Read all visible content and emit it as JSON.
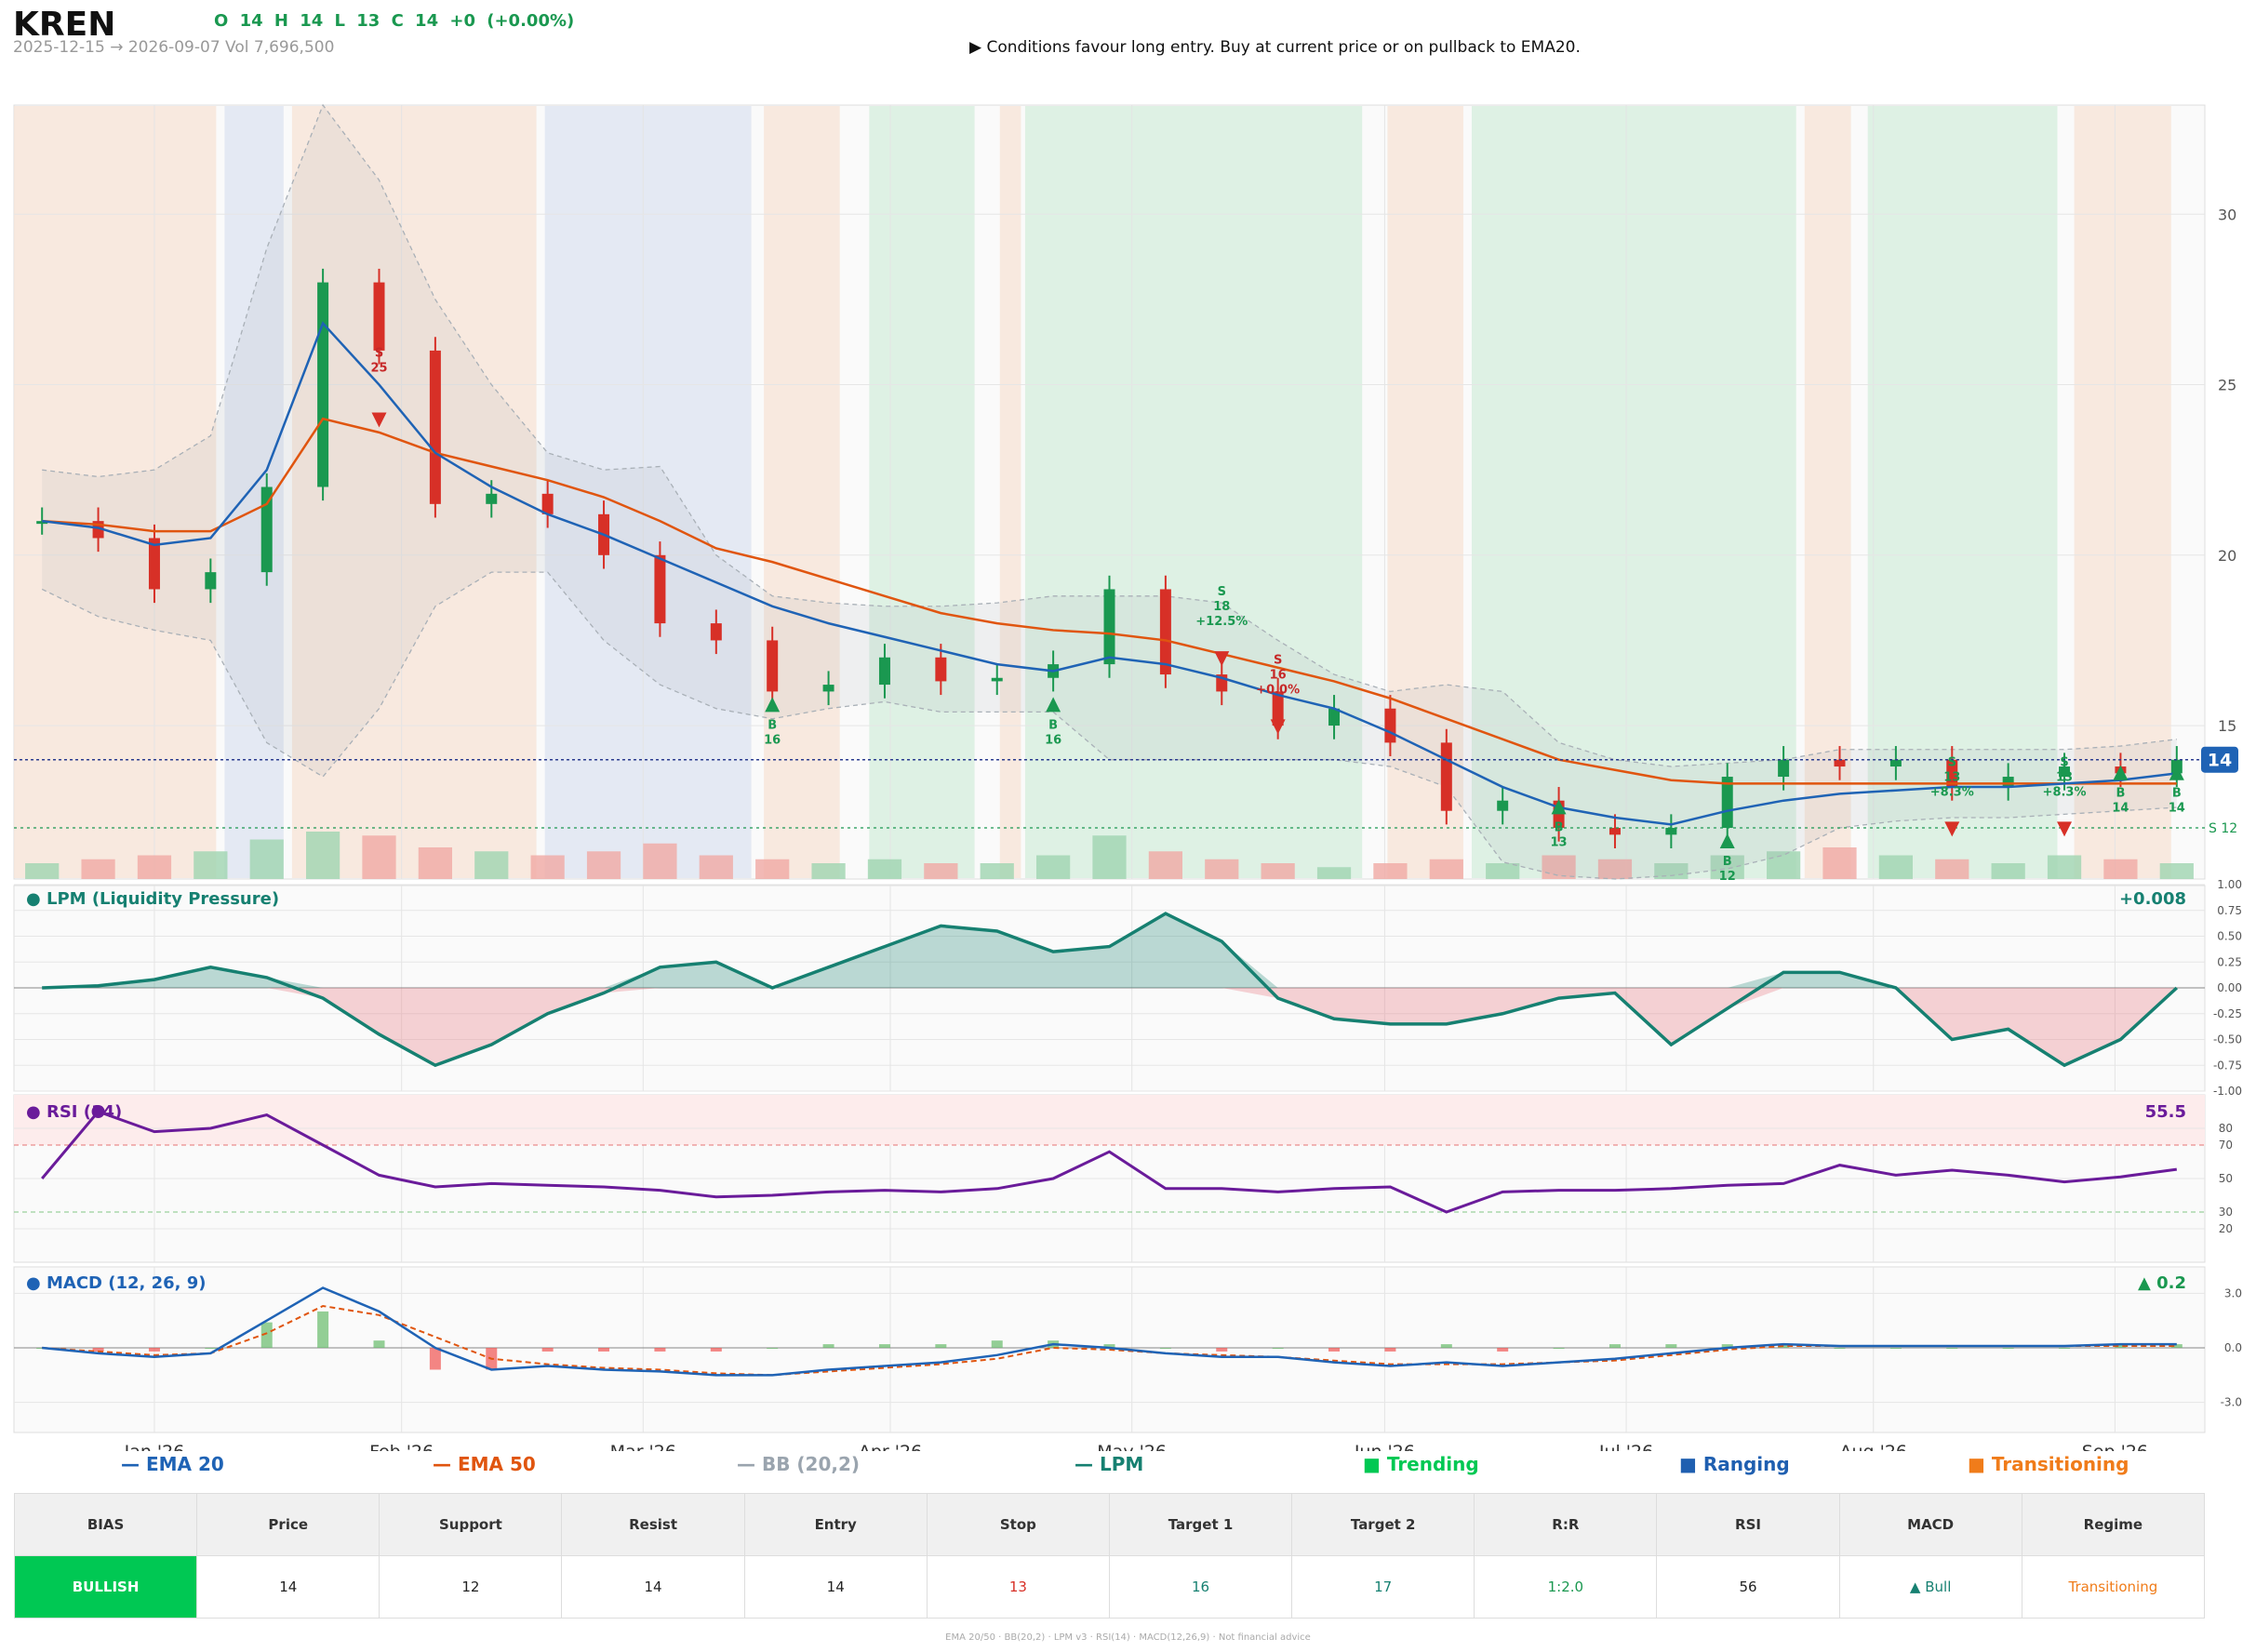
{
  "header": {
    "ticker": "KREN",
    "ohlc": "O 14   H 14   L 13   C 14   +0  (+0.00%)",
    "subline": "2025-12-15 → 2026-09-07   Vol 7,696,500",
    "advice": "▶  Conditions favour long entry. Buy at current price or on pullback to EMA20."
  },
  "colors": {
    "up": "#1a9850",
    "down": "#d73027",
    "ema20": "#1f63b5",
    "ema50": "#e0550f",
    "lpm": "#168071",
    "rsi": "#6a1b9a",
    "trending": "#00c853",
    "ranging": "#1f5fb0",
    "transitioning": "#f07c1a"
  },
  "chart_data": [
    {
      "type": "line",
      "title": "",
      "x": [
        "2025-12-15",
        "2025-12-22",
        "2025-12-29",
        "2026-01-05",
        "2026-01-12",
        "2026-01-19",
        "2026-01-26",
        "2026-02-02",
        "2026-02-09",
        "2026-02-16",
        "2026-02-23",
        "2026-03-02",
        "2026-03-09",
        "2026-03-16",
        "2026-03-23",
        "2026-03-30",
        "2026-04-06",
        "2026-04-13",
        "2026-04-20",
        "2026-04-27",
        "2026-05-04",
        "2026-05-11",
        "2026-05-18",
        "2026-05-25",
        "2026-06-01",
        "2026-06-08",
        "2026-06-15",
        "2026-06-22",
        "2026-06-29",
        "2026-07-06",
        "2026-07-13",
        "2026-07-20",
        "2026-07-27",
        "2026-08-03",
        "2026-08-10",
        "2026-08-17",
        "2026-08-24",
        "2026-08-31",
        "2026-09-07"
      ],
      "x_tick_labels": [
        "Jan '26",
        "Feb '26",
        "Mar '26",
        "Apr '26",
        "May '26",
        "Jun '26",
        "Jul '26",
        "Aug '26",
        "Sep '26"
      ],
      "y_ticks": [
        15,
        20,
        25,
        30
      ],
      "ylim": [
        10.5,
        33.2
      ],
      "series": [
        {
          "name": "EMA 20",
          "values": [
            21.0,
            20.8,
            20.3,
            20.5,
            22.5,
            26.8,
            25.0,
            23.0,
            22.0,
            21.2,
            20.6,
            19.9,
            19.2,
            18.5,
            18.0,
            17.6,
            17.2,
            16.8,
            16.6,
            17.0,
            16.8,
            16.4,
            15.9,
            15.5,
            14.8,
            14.0,
            13.2,
            12.6,
            12.3,
            12.1,
            12.5,
            12.8,
            13.0,
            13.1,
            13.2,
            13.2,
            13.3,
            13.4,
            13.6
          ]
        },
        {
          "name": "EMA 50",
          "values": [
            21.0,
            20.9,
            20.7,
            20.7,
            21.5,
            24.0,
            23.6,
            23.0,
            22.6,
            22.2,
            21.7,
            21.0,
            20.2,
            19.8,
            19.3,
            18.8,
            18.3,
            18.0,
            17.8,
            17.7,
            17.5,
            17.1,
            16.7,
            16.3,
            15.8,
            15.2,
            14.6,
            14.0,
            13.7,
            13.4,
            13.3,
            13.3,
            13.3,
            13.3,
            13.3,
            13.3,
            13.3,
            13.3,
            13.3
          ]
        },
        {
          "name": "BB (20,2)",
          "values": [
            22.5,
            22.3,
            22.5,
            23.5,
            29.0,
            33.2,
            31.0,
            27.5,
            25.0,
            23.0,
            22.5,
            22.6,
            20.0,
            18.8,
            18.6,
            18.5,
            18.5,
            18.6,
            18.8,
            18.8,
            18.8,
            18.6,
            17.5,
            16.5,
            16.0,
            16.2,
            16.0,
            14.5,
            14.0,
            13.8,
            13.9,
            14.0,
            14.3,
            14.3,
            14.3,
            14.3,
            14.3,
            14.4,
            14.6
          ]
        },
        {
          "name": "BB lower",
          "values": [
            19.0,
            18.2,
            17.8,
            17.5,
            14.5,
            13.5,
            15.5,
            18.5,
            19.5,
            19.5,
            17.5,
            16.2,
            15.5,
            15.2,
            15.5,
            15.7,
            15.4,
            15.4,
            15.4,
            14.0,
            14.0,
            14.0,
            14.0,
            14.0,
            13.8,
            13.2,
            11.0,
            10.6,
            10.5,
            10.6,
            10.8,
            11.2,
            12.0,
            12.2,
            12.3,
            12.3,
            12.4,
            12.5,
            12.6
          ]
        }
      ],
      "closes": [
        21,
        20.5,
        19,
        19.5,
        22,
        28,
        26,
        21.5,
        21.8,
        21.2,
        20,
        18,
        17.5,
        16,
        16.2,
        17,
        16.3,
        16.4,
        16.8,
        19,
        16.5,
        16,
        15,
        15.5,
        14.5,
        12.5,
        12.8,
        12,
        11.8,
        12,
        13.5,
        14,
        13.8,
        14,
        13.2,
        13.5,
        13.8,
        13.6,
        14
      ],
      "current_price_tag": "14",
      "stop_label": "S 12",
      "trade_markers": [
        {
          "side": "S",
          "price": "25",
          "text": "S\n25"
        },
        {
          "side": "B",
          "price": "16",
          "text": "B\n16"
        },
        {
          "side": "B",
          "price": "16",
          "text": "B\n16"
        },
        {
          "side": "S",
          "price": "18",
          "text": "S\n18\n+12.5%"
        },
        {
          "side": "S",
          "price": "16",
          "text": "S\n16\n+0.0%"
        },
        {
          "side": "B",
          "price": "13",
          "text": "B\n13"
        },
        {
          "side": "B",
          "price": "12",
          "text": "B\n12"
        },
        {
          "side": "S",
          "price": "13",
          "text": "S\n13\n+8.3%"
        },
        {
          "side": "S",
          "price": "13",
          "text": "S\n13\n+8.3%"
        },
        {
          "side": "B",
          "price": "14",
          "text": "B\n14"
        },
        {
          "side": "B",
          "price": "14",
          "text": "B\n14"
        }
      ],
      "volume_levels": [
        0.2,
        0.25,
        0.3,
        0.35,
        0.5,
        0.6,
        0.55,
        0.4,
        0.35,
        0.3,
        0.35,
        0.45,
        0.3,
        0.25,
        0.2,
        0.25,
        0.2,
        0.2,
        0.3,
        0.55,
        0.35,
        0.25,
        0.2,
        0.15,
        0.2,
        0.25,
        0.2,
        0.3,
        0.25,
        0.2,
        0.3,
        0.35,
        0.4,
        0.3,
        0.25,
        0.2,
        0.3,
        0.25,
        0.2
      ]
    },
    {
      "type": "area",
      "title": "● LPM (Liquidity Pressure)",
      "value_label": "+0.008",
      "y_ticks": [
        "1.00",
        "0.75",
        "0.50",
        "0.25",
        "0.00",
        "-0.25",
        "-0.50",
        "-0.75",
        "-1.00"
      ],
      "ylim": [
        -1.0,
        1.0
      ],
      "values": [
        0.0,
        0.02,
        0.08,
        0.2,
        0.1,
        -0.1,
        -0.45,
        -0.75,
        -0.55,
        -0.25,
        -0.05,
        0.2,
        0.25,
        0.0,
        0.2,
        0.4,
        0.6,
        0.55,
        0.35,
        0.4,
        0.72,
        0.45,
        -0.1,
        -0.3,
        -0.35,
        -0.35,
        -0.25,
        -0.1,
        -0.05,
        -0.55,
        -0.2,
        0.15,
        0.15,
        0.0,
        -0.5,
        -0.4,
        -0.75,
        -0.5,
        0.0
      ]
    },
    {
      "type": "line",
      "title": "● RSI (14)",
      "value_label": "55.5",
      "y_ticks": [
        80,
        70,
        50,
        30,
        20
      ],
      "ylim": [
        0,
        100
      ],
      "values": [
        50,
        90,
        78,
        80,
        88,
        70,
        52,
        45,
        47,
        46,
        45,
        43,
        39,
        40,
        42,
        43,
        42,
        44,
        50,
        66,
        44,
        44,
        42,
        44,
        45,
        30,
        42,
        43,
        43,
        44,
        46,
        47,
        58,
        52,
        55,
        52,
        48,
        51,
        55.5
      ]
    },
    {
      "type": "line",
      "title": "● MACD (12, 26, 9)",
      "value_label": "▲ 0.2",
      "y_ticks": [
        "3.0",
        "0.0",
        "-3.0"
      ],
      "ylim": [
        -4.5,
        4.5
      ],
      "series": [
        {
          "name": "MACD",
          "values": [
            0.0,
            -0.3,
            -0.5,
            -0.3,
            1.5,
            3.3,
            2.0,
            0.0,
            -1.2,
            -1.0,
            -1.2,
            -1.3,
            -1.5,
            -1.5,
            -1.2,
            -1.0,
            -0.8,
            -0.4,
            0.2,
            0.0,
            -0.3,
            -0.5,
            -0.5,
            -0.8,
            -1.0,
            -0.8,
            -1.0,
            -0.8,
            -0.6,
            -0.3,
            0.0,
            0.2,
            0.1,
            0.1,
            0.1,
            0.1,
            0.1,
            0.2,
            0.2
          ]
        },
        {
          "name": "Signal",
          "values": [
            0.0,
            -0.2,
            -0.4,
            -0.3,
            0.8,
            2.3,
            1.8,
            0.6,
            -0.6,
            -0.9,
            -1.1,
            -1.2,
            -1.4,
            -1.5,
            -1.3,
            -1.1,
            -0.9,
            -0.6,
            0.0,
            -0.1,
            -0.3,
            -0.4,
            -0.5,
            -0.7,
            -0.9,
            -0.9,
            -0.9,
            -0.8,
            -0.7,
            -0.4,
            -0.1,
            0.1,
            0.1,
            0.1,
            0.1,
            0.1,
            0.1,
            0.1,
            0.1
          ]
        }
      ]
    }
  ],
  "regimes": [
    {
      "start": 0,
      "end": 4.8,
      "kind": "transitioning"
    },
    {
      "start": 5.0,
      "end": 6.4,
      "kind": "ranging"
    },
    {
      "start": 6.6,
      "end": 12.4,
      "kind": "transitioning"
    },
    {
      "start": 12.6,
      "end": 17.5,
      "kind": "ranging"
    },
    {
      "start": 17.8,
      "end": 19.6,
      "kind": "transitioning"
    },
    {
      "start": 20.3,
      "end": 22.8,
      "kind": "trending"
    },
    {
      "start": 23.4,
      "end": 23.9,
      "kind": "transitioning"
    },
    {
      "start": 24.0,
      "end": 32.0,
      "kind": "trending"
    },
    {
      "start": 32.6,
      "end": 34.4,
      "kind": "transitioning"
    },
    {
      "start": 34.6,
      "end": 42.3,
      "kind": "trending"
    },
    {
      "start": 42.5,
      "end": 43.6,
      "kind": "transitioning"
    },
    {
      "start": 44.0,
      "end": 48.5,
      "kind": "trending"
    },
    {
      "start": 48.9,
      "end": 51.2,
      "kind": "transitioning"
    }
  ],
  "legend": {
    "ema20": "— EMA 20",
    "ema50": "— EMA 50",
    "bb": "— BB (20,2)",
    "lpm": "— LPM",
    "trending": "■  Trending",
    "ranging": "■  Ranging",
    "transitioning": "■  Transitioning"
  },
  "table": {
    "headers": [
      "BIAS",
      "Price",
      "Support",
      "Resist",
      "Entry",
      "Stop",
      "Target 1",
      "Target 2",
      "R:R",
      "RSI",
      "MACD",
      "Regime"
    ],
    "values": [
      "BULLISH",
      "14",
      "12",
      "14",
      "14",
      "13",
      "16",
      "17",
      "1:2.0",
      "56",
      "▲ Bull",
      "Transitioning"
    ],
    "value_colors": [
      "#ffffff",
      "#222222",
      "#222222",
      "#222222",
      "#222222",
      "#d73027",
      "#168071",
      "#168071",
      "#1a9850",
      "#222222",
      "#168071",
      "#f07c1a"
    ]
  },
  "footer": "EMA 20/50  ·  BB(20,2)  ·  LPM v3  ·  RSI(14)  ·  MACD(12,26,9)  ·  Not financial advice"
}
